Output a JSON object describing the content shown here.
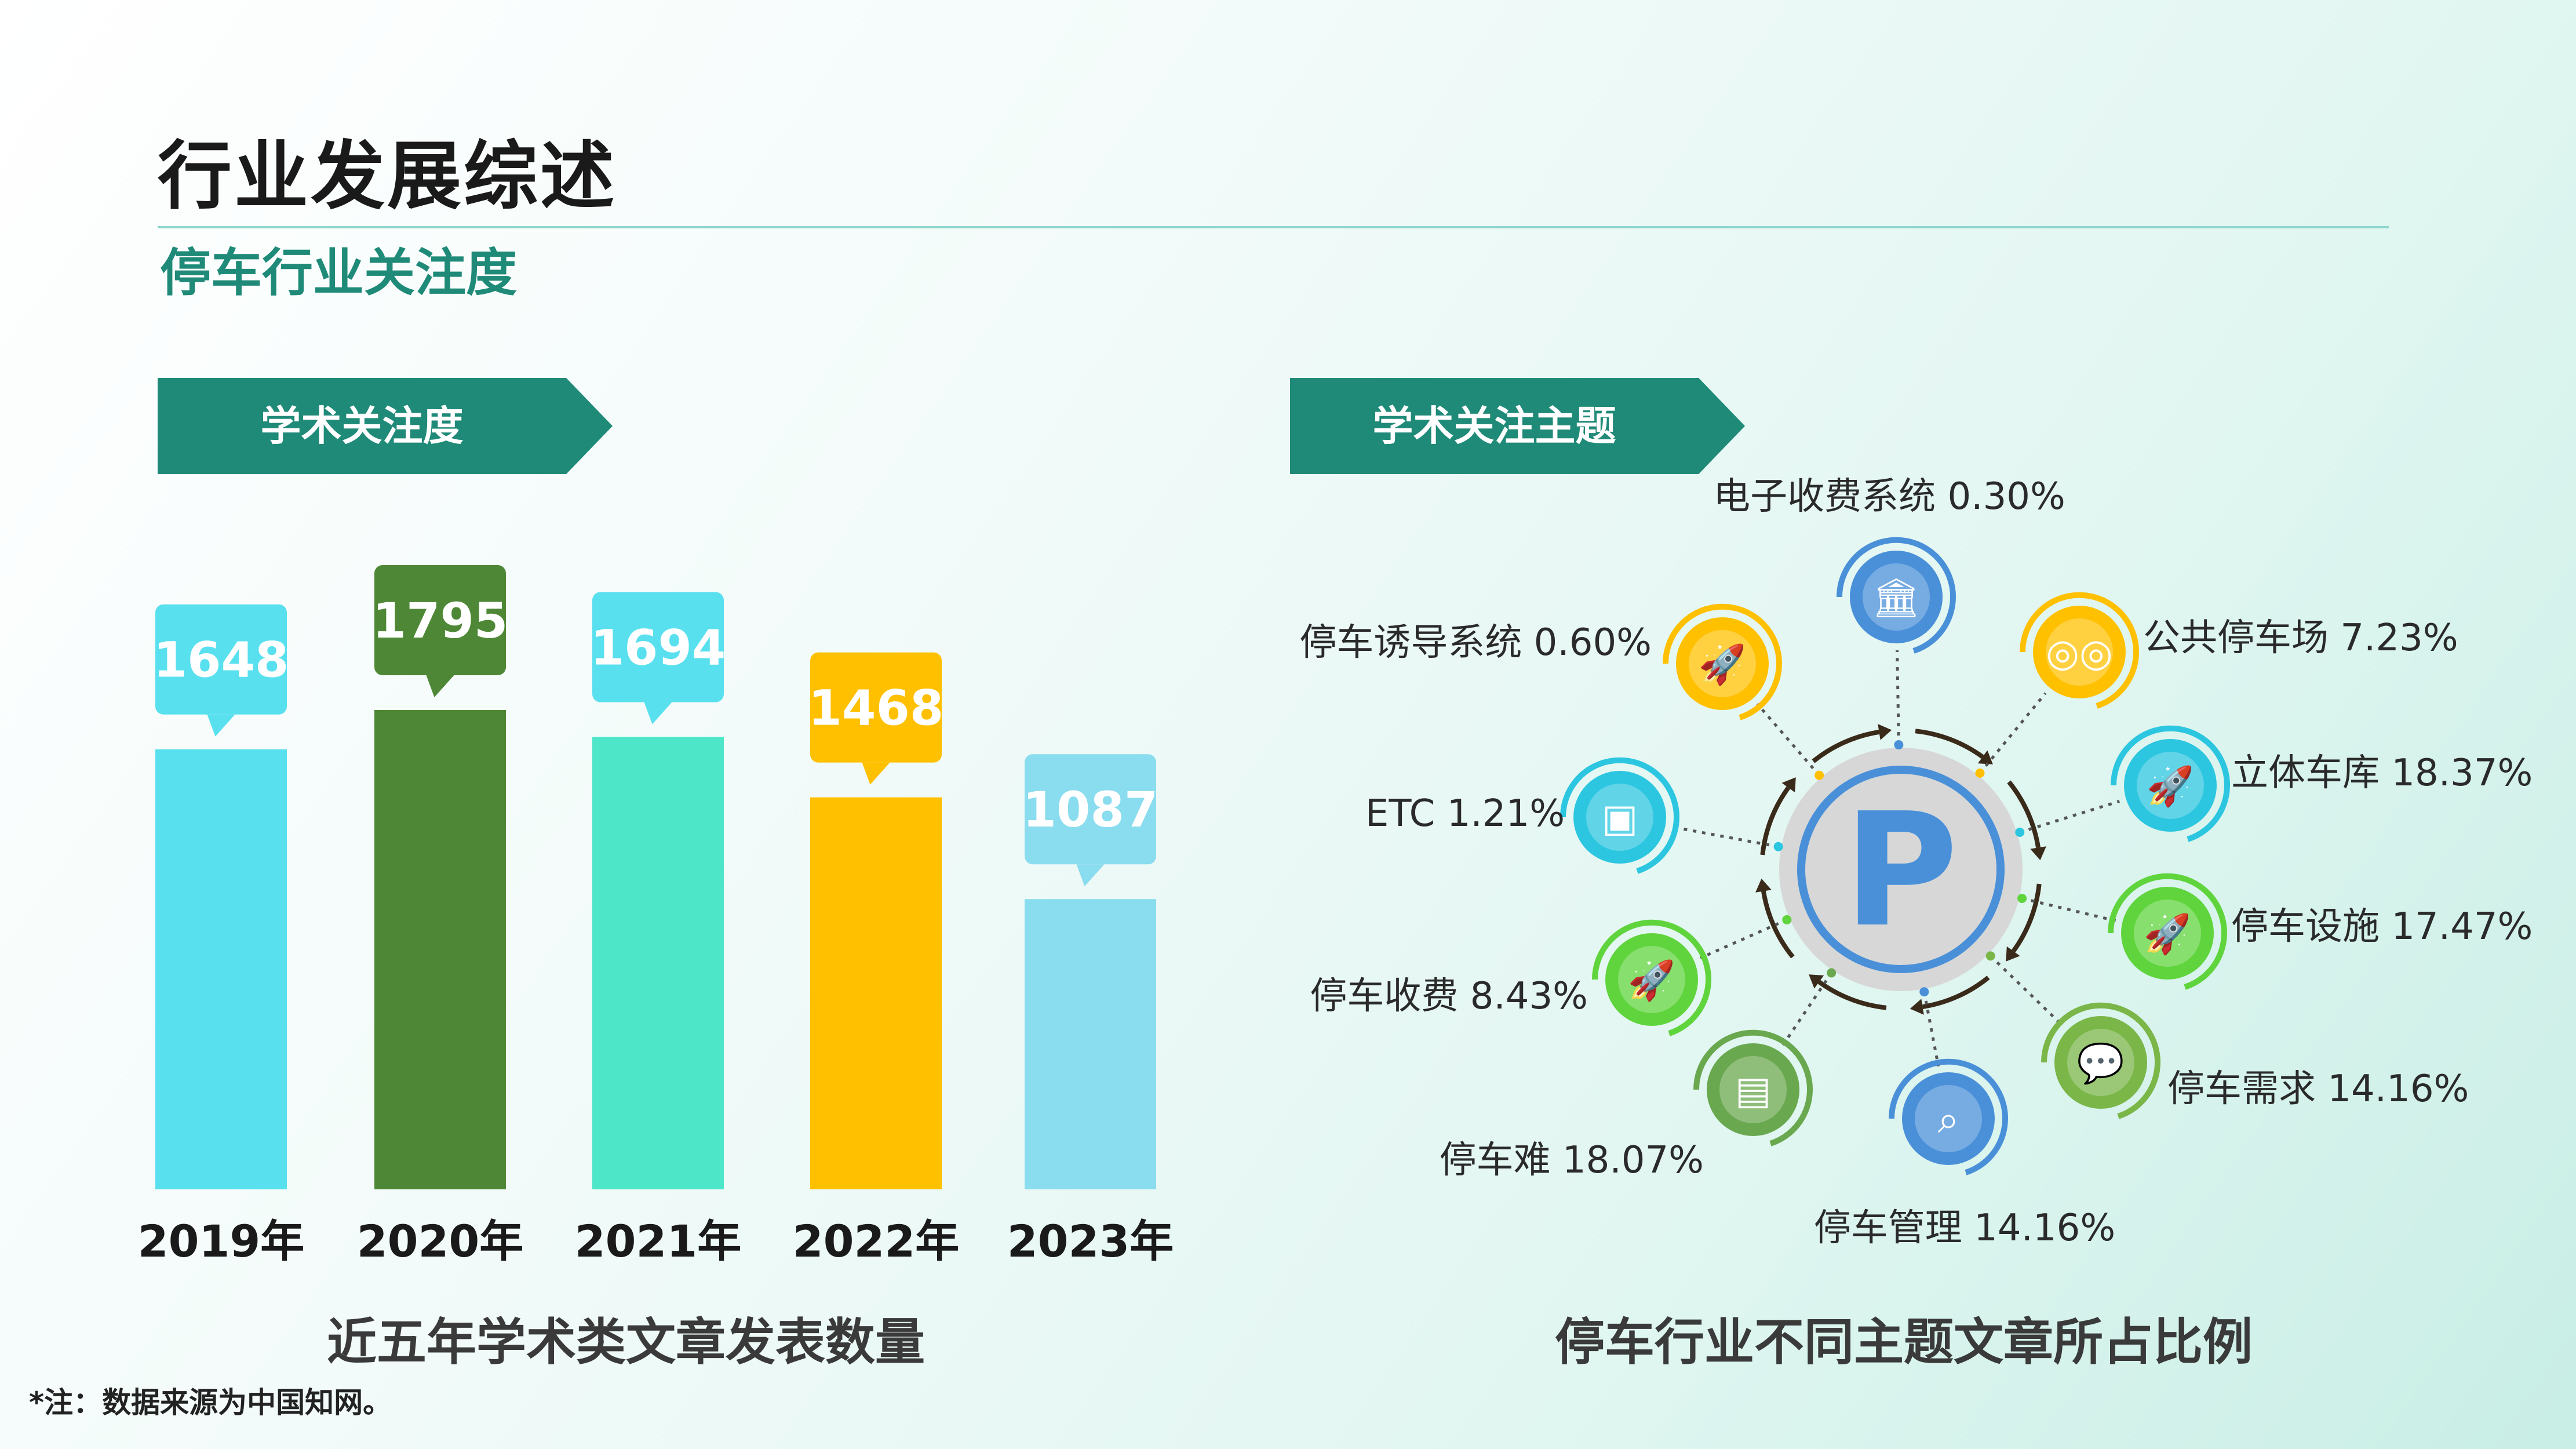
{
  "page": {
    "title": "行业发展综述",
    "subtitle": "停车行业关注度",
    "note": "*注：数据来源为中国知网。"
  },
  "colors": {
    "accent": "#1f8a78",
    "bar_2019": "#59e0ef",
    "bar_2020": "#4e8836",
    "bar_2021": "#4de6c8",
    "bar_2022": "#ffc000",
    "bar_2023": "#8adcef"
  },
  "left_panel": {
    "banner": "学术关注度",
    "caption": "近五年学术类文章发表数量"
  },
  "right_panel": {
    "banner": "学术关注主题",
    "caption": "停车行业不同主题文章所占比例",
    "center_icon": "parking-icon"
  },
  "chart_data": [
    {
      "type": "bar",
      "categories": [
        "2019年",
        "2020年",
        "2021年",
        "2022年",
        "2023年"
      ],
      "values": [
        1648,
        1795,
        1694,
        1468,
        1087
      ],
      "data_labels": [
        "1648",
        "1795",
        "1694",
        "1468",
        "1087"
      ],
      "colors": [
        "#59e0ef",
        "#4e8836",
        "#4de6c8",
        "#ffc000",
        "#8adcef"
      ],
      "title": "近五年学术类文章发表数量",
      "grid": false,
      "legend": "none"
    },
    {
      "type": "pie",
      "title": "停车行业不同主题文章所占比例",
      "labels": [
        "电子收费系统",
        "公共停车场",
        "立体车库",
        "停车设施",
        "停车需求",
        "停车管理",
        "停车难",
        "停车收费",
        "ETC",
        "停车诱导系统"
      ],
      "values": [
        0.3,
        7.23,
        18.37,
        17.47,
        14.16,
        14.16,
        18.07,
        8.43,
        1.21,
        0.6
      ],
      "display": [
        "电子收费系统 0.30%",
        "公共停车场 7.23%",
        "立体车库 18.37%",
        "停车设施 17.47%",
        "停车需求 14.16%",
        "停车管理 14.16%",
        "停车难 18.07%",
        "停车收费 8.43%",
        "ETC 1.21%",
        "停车诱导系统 0.60%"
      ],
      "icons": [
        "bank-icon",
        "tripadvisor-icon",
        "rocket-icon",
        "rocket-icon",
        "chat-icon",
        "search-icon",
        "ticket-icon",
        "rocket-icon",
        "wallet-icon",
        "rocket-icon"
      ],
      "node_colors": [
        "#4a90d9",
        "#ffc000",
        "#2cc6e0",
        "#5fd43c",
        "#7ab648",
        "#4a90d9",
        "#6aa84f",
        "#5fd43c",
        "#2cc6e0",
        "#ffc000"
      ],
      "unit": "%"
    }
  ]
}
